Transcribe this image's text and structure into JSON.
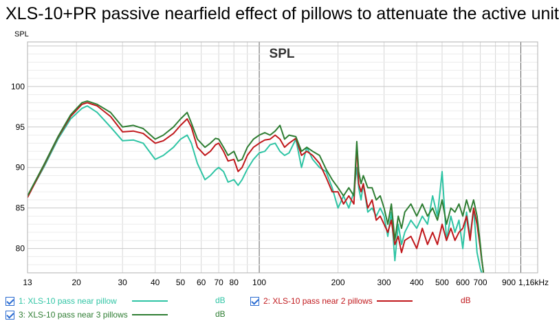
{
  "window": {
    "title": "XLS-10+PR passive nearfield effect of pillows to attenuate the active unit"
  },
  "chart_data": {
    "type": "line",
    "title": "XLS-10+PR passive nearfield effect of pillows to attenuate the active unit",
    "plot_label": "SPL",
    "ylabel": "SPL",
    "x_unit": "Hz",
    "x_scale": "log",
    "xlim": [
      13,
      1160
    ],
    "ylim": [
      77,
      105.5
    ],
    "y_ticks": [
      80,
      85,
      90,
      95,
      100
    ],
    "x_ticks": [
      {
        "value": 13,
        "label": "13"
      },
      {
        "value": 20,
        "label": "20"
      },
      {
        "value": 30,
        "label": "30"
      },
      {
        "value": 40,
        "label": "40"
      },
      {
        "value": 50,
        "label": "50"
      },
      {
        "value": 60,
        "label": "60"
      },
      {
        "value": 70,
        "label": "70"
      },
      {
        "value": 80,
        "label": "80"
      },
      {
        "value": 100,
        "label": "100"
      },
      {
        "value": 200,
        "label": "200"
      },
      {
        "value": 300,
        "label": "300"
      },
      {
        "value": 400,
        "label": "400"
      },
      {
        "value": 500,
        "label": "500"
      },
      {
        "value": 600,
        "label": "600"
      },
      {
        "value": 700,
        "label": "700"
      },
      {
        "value": 900,
        "label": "900"
      },
      {
        "value": 1160,
        "label": "1,16kHz"
      }
    ],
    "grid": true,
    "series": [
      {
        "name": "1: XLS-10 pass near pillow",
        "unit": "dB",
        "color": "#2ec4a4",
        "x": [
          13,
          15,
          17,
          19,
          21,
          22,
          24,
          27,
          30,
          33,
          36,
          40,
          43,
          47,
          50,
          53,
          55,
          58,
          62,
          65,
          68,
          70,
          73,
          76,
          80,
          83,
          86,
          90,
          95,
          100,
          105,
          110,
          115,
          120,
          125,
          130,
          138,
          145,
          152,
          160,
          170,
          180,
          190,
          200,
          210,
          220,
          230,
          236,
          240,
          245,
          250,
          260,
          270,
          280,
          290,
          300,
          310,
          320,
          330,
          340,
          350,
          360,
          380,
          400,
          420,
          440,
          460,
          480,
          500,
          520,
          540,
          560,
          580,
          600,
          620,
          640,
          660,
          680,
          700,
          710,
          720
        ],
        "y": [
          86.4,
          90.0,
          93.5,
          96.0,
          97.3,
          97.6,
          96.8,
          95.0,
          93.3,
          93.4,
          93.0,
          91.0,
          91.5,
          92.5,
          93.5,
          94.0,
          93.0,
          90.5,
          88.5,
          89.0,
          89.7,
          90.0,
          89.5,
          88.2,
          88.5,
          87.8,
          88.5,
          89.8,
          91.0,
          91.8,
          92.0,
          92.8,
          93.0,
          92.0,
          91.5,
          91.8,
          93.5,
          90.0,
          92.5,
          91.0,
          90.0,
          89.5,
          87.5,
          85.0,
          86.5,
          85.0,
          87.0,
          90.0,
          87.5,
          86.0,
          88.0,
          84.5,
          85.0,
          84.0,
          85.0,
          84.0,
          81.5,
          84.5,
          78.5,
          83.0,
          80.5,
          82.0,
          83.5,
          82.5,
          84.0,
          83.0,
          86.5,
          84.0,
          89.5,
          81.0,
          84.0,
          82.0,
          83.5,
          80.0,
          84.5,
          81.5,
          85.0,
          79.5,
          77.5,
          77.0,
          76.5
        ]
      },
      {
        "name": "2: XLS-10 pass near 2 pillows",
        "unit": "dB",
        "color": "#c0171b",
        "x": [
          13,
          15,
          17,
          19,
          21,
          22,
          24,
          27,
          30,
          33,
          36,
          40,
          43,
          47,
          50,
          53,
          55,
          58,
          62,
          65,
          68,
          70,
          73,
          76,
          80,
          83,
          86,
          90,
          95,
          100,
          105,
          110,
          115,
          120,
          125,
          130,
          138,
          145,
          152,
          160,
          170,
          180,
          190,
          200,
          210,
          220,
          230,
          236,
          240,
          245,
          250,
          260,
          270,
          280,
          290,
          300,
          310,
          320,
          330,
          340,
          350,
          360,
          380,
          400,
          420,
          440,
          460,
          480,
          500,
          520,
          540,
          560,
          580,
          600,
          620,
          640,
          660,
          680,
          700,
          710,
          720
        ],
        "y": [
          86.3,
          90.2,
          93.7,
          96.3,
          97.8,
          98.0,
          97.6,
          96.3,
          94.4,
          94.5,
          94.2,
          93.0,
          93.3,
          94.2,
          95.2,
          96.0,
          95.0,
          92.5,
          91.5,
          92.0,
          92.8,
          93.0,
          92.0,
          90.8,
          91.0,
          89.5,
          90.0,
          91.5,
          92.5,
          93.0,
          93.4,
          93.5,
          94.0,
          93.5,
          92.5,
          93.0,
          93.6,
          91.5,
          92.0,
          91.5,
          90.5,
          88.8,
          87.0,
          87.0,
          85.5,
          86.5,
          85.5,
          92.8,
          88.0,
          87.0,
          88.0,
          85.0,
          86.0,
          83.5,
          84.0,
          83.0,
          82.0,
          83.5,
          80.5,
          81.5,
          79.5,
          81.0,
          81.5,
          80.0,
          82.5,
          80.5,
          82.0,
          80.5,
          83.0,
          81.0,
          82.5,
          81.0,
          82.0,
          82.5,
          84.0,
          81.0,
          85.0,
          83.0,
          80.0,
          78.5,
          77.0
        ]
      },
      {
        "name": "3: XLS-10 pass near 3 pillows",
        "unit": "dB",
        "color": "#2e7d32",
        "x": [
          13,
          15,
          17,
          19,
          21,
          22,
          24,
          27,
          30,
          33,
          36,
          40,
          43,
          47,
          50,
          53,
          55,
          58,
          62,
          65,
          68,
          70,
          73,
          76,
          80,
          83,
          86,
          90,
          95,
          100,
          105,
          110,
          115,
          120,
          125,
          130,
          138,
          145,
          152,
          160,
          170,
          180,
          190,
          200,
          210,
          220,
          230,
          236,
          240,
          245,
          250,
          260,
          270,
          280,
          290,
          300,
          310,
          320,
          330,
          340,
          350,
          360,
          380,
          400,
          420,
          440,
          460,
          480,
          500,
          520,
          540,
          560,
          580,
          600,
          620,
          640,
          660,
          680,
          700,
          710,
          720
        ],
        "y": [
          86.5,
          90.3,
          93.8,
          96.5,
          98.0,
          98.2,
          97.8,
          96.8,
          95.0,
          95.2,
          94.8,
          93.5,
          94.0,
          95.0,
          96.0,
          96.8,
          95.5,
          93.5,
          92.5,
          93.0,
          93.6,
          93.5,
          92.5,
          91.5,
          92.0,
          90.8,
          91.0,
          92.5,
          93.5,
          94.0,
          94.3,
          94.0,
          94.5,
          95.2,
          93.5,
          94.0,
          93.8,
          92.0,
          92.5,
          92.0,
          91.5,
          89.8,
          88.5,
          87.5,
          86.5,
          87.5,
          86.5,
          93.2,
          89.5,
          88.0,
          89.0,
          87.5,
          87.5,
          86.0,
          86.5,
          85.0,
          83.0,
          85.5,
          81.0,
          84.0,
          82.5,
          84.5,
          85.5,
          84.0,
          85.5,
          84.0,
          85.0,
          83.5,
          86.0,
          83.0,
          85.0,
          84.5,
          85.5,
          84.0,
          86.0,
          84.5,
          86.0,
          84.0,
          80.5,
          78.5,
          77.0
        ]
      }
    ]
  },
  "legend": {
    "items": [
      {
        "label": "1: XLS-10 pass near pillow",
        "unit": "dB",
        "color": "#2ec4a4",
        "text_color": "#2ec4a4"
      },
      {
        "label": "2: XLS-10 pass near 2 pillows",
        "unit": "dB",
        "color": "#c0171b",
        "text_color": "#c0171b"
      },
      {
        "label": "3: XLS-10 pass near 3 pillows",
        "unit": "dB",
        "color": "#2e7d32",
        "text_color": "#2e7d32"
      }
    ]
  }
}
